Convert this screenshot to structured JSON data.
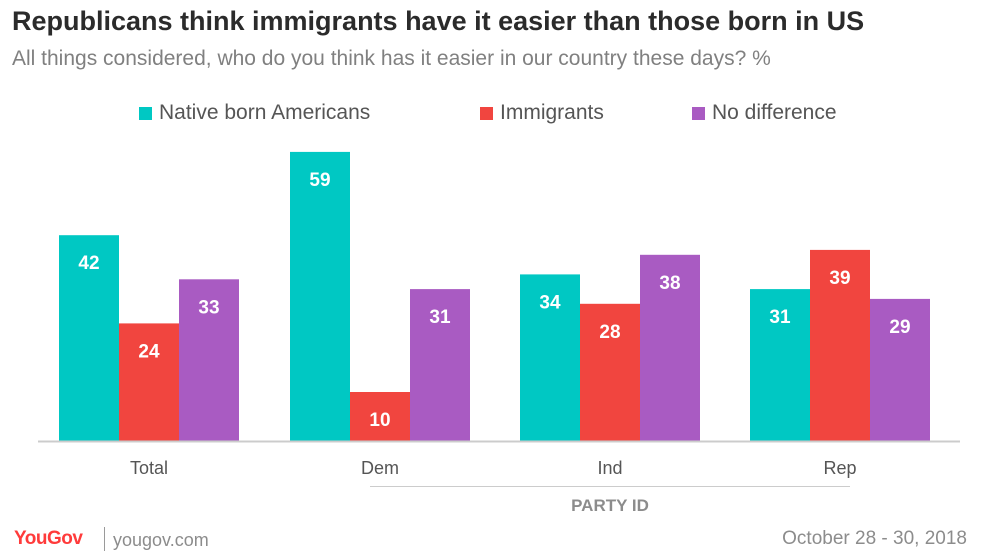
{
  "title": "Republicans think immigrants have it easier than those born in US",
  "subtitle": "All things considered, who do you think has it easier in our country these days? %",
  "legend": [
    {
      "label": "Native born Americans",
      "color": "#00c8c3"
    },
    {
      "label": "Immigrants",
      "color": "#f1453f"
    },
    {
      "label": "No difference",
      "color": "#a95bc2"
    }
  ],
  "group_label": "PARTY ID",
  "footer": {
    "brand": "YouGov",
    "url": "yougov.com",
    "date": "October 28 - 30, 2018"
  },
  "chart_data": {
    "type": "bar",
    "categories": [
      "Total",
      "Dem",
      "Ind",
      "Rep"
    ],
    "series": [
      {
        "name": "Native born Americans",
        "color": "#00c8c3",
        "values": [
          42,
          59,
          34,
          31
        ]
      },
      {
        "name": "Immigrants",
        "color": "#f1453f",
        "values": [
          24,
          10,
          28,
          39
        ]
      },
      {
        "name": "No difference",
        "color": "#a95bc2",
        "values": [
          33,
          31,
          38,
          29
        ]
      }
    ],
    "ylim": [
      0,
      60
    ],
    "grid": false,
    "legend_position": "top",
    "data_labels": true
  }
}
